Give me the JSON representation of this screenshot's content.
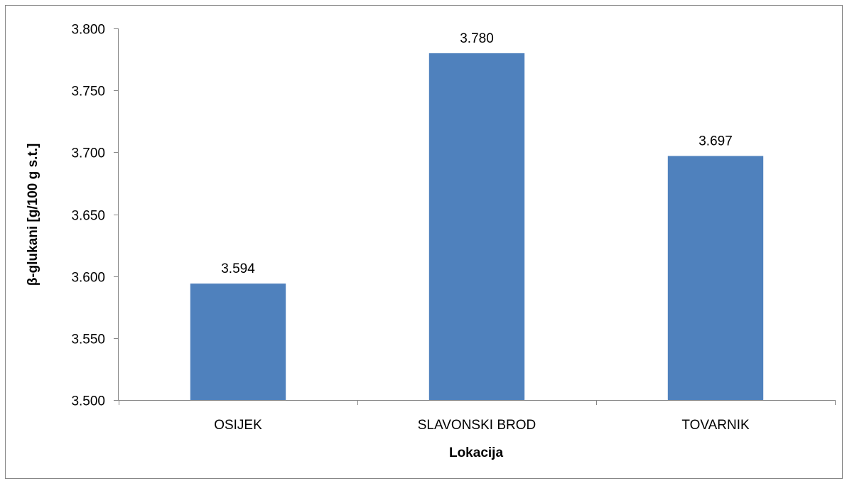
{
  "chart_data": {
    "type": "bar",
    "title": "",
    "xlabel": "Lokacija",
    "ylabel": "β-glukani [g/100 g s.t.]",
    "categories": [
      "OSIJEK",
      "SLAVONSKI BROD",
      "TOVARNIK"
    ],
    "values": [
      3.594,
      3.78,
      3.697
    ],
    "value_labels": [
      "3.594",
      "3.780",
      "3.697"
    ],
    "ylim": [
      3.5,
      3.8
    ],
    "yticks": [
      3.5,
      3.55,
      3.6,
      3.65,
      3.7,
      3.75,
      3.8
    ],
    "ytick_labels": [
      "3.500",
      "3.550",
      "3.600",
      "3.650",
      "3.700",
      "3.750",
      "3.800"
    ],
    "grid": false,
    "legend": "none",
    "bar_color": "#4F81BD"
  }
}
